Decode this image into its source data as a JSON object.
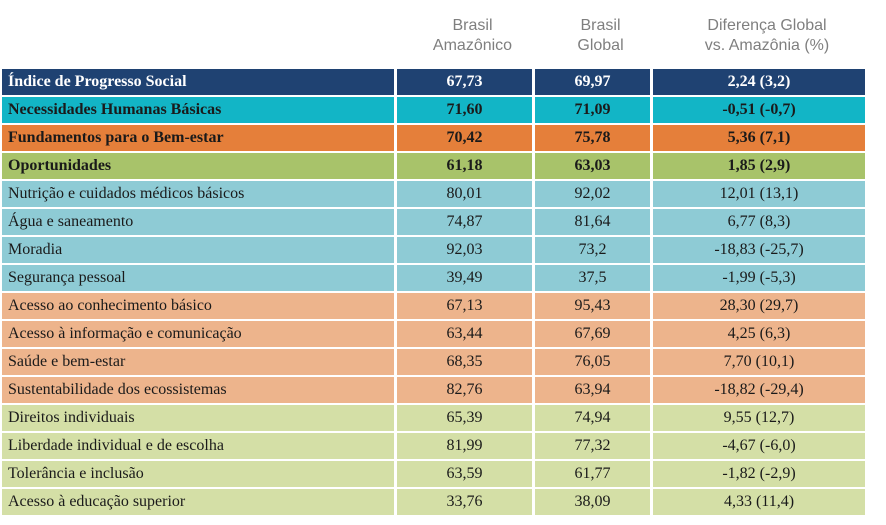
{
  "headers": {
    "col1": [
      "Brasil",
      "Amazônico"
    ],
    "col2": [
      "Brasil",
      "Global"
    ],
    "col3": [
      "Diferença Global",
      "vs. Amazônia (%)"
    ]
  },
  "colors": {
    "ips": "#1f4272",
    "nhb_main": "#12b5c6",
    "nhb_sub": "#8ecbd5",
    "fbe_main": "#e57f3a",
    "fbe_sub": "#edb48c",
    "op_main": "#a8c36a",
    "op_sub": "#d4dfa6"
  },
  "chart_data": {
    "type": "table",
    "columns": [
      "",
      "Brasil Amazônico",
      "Brasil Global",
      "Diferença Global vs. Amazônia (%)"
    ],
    "rows": [
      {
        "label": "Índice de Progresso Social",
        "amazonico": "67,73",
        "global": "69,97",
        "diff": "2,24 (3,2)",
        "group": "ips",
        "main": true
      },
      {
        "label": "Necessidades Humanas Básicas",
        "amazonico": "71,60",
        "global": "71,09",
        "diff": "-0,51 (-0,7)",
        "group": "nhb_main",
        "main": true
      },
      {
        "label": "Fundamentos para o Bem-estar",
        "amazonico": "70,42",
        "global": "75,78",
        "diff": "5,36 (7,1)",
        "group": "fbe_main",
        "main": true
      },
      {
        "label": "Oportunidades",
        "amazonico": "61,18",
        "global": "63,03",
        "diff": "1,85 (2,9)",
        "group": "op_main",
        "main": true
      },
      {
        "label": "Nutrição e cuidados médicos básicos",
        "amazonico": "80,01",
        "global": "92,02",
        "diff": "12,01 (13,1)",
        "group": "nhb_sub",
        "main": false
      },
      {
        "label": "Água e saneamento",
        "amazonico": "74,87",
        "global": "81,64",
        "diff": "6,77 (8,3)",
        "group": "nhb_sub",
        "main": false
      },
      {
        "label": "Moradia",
        "amazonico": "92,03",
        "global": "73,2",
        "diff": "-18,83 (-25,7)",
        "group": "nhb_sub",
        "main": false
      },
      {
        "label": "Segurança pessoal",
        "amazonico": "39,49",
        "global": "37,5",
        "diff": "-1,99 (-5,3)",
        "group": "nhb_sub",
        "main": false
      },
      {
        "label": "Acesso ao conhecimento básico",
        "amazonico": "67,13",
        "global": "95,43",
        "diff": "28,30 (29,7)",
        "group": "fbe_sub",
        "main": false
      },
      {
        "label": "Acesso à informação e comunicação",
        "amazonico": "63,44",
        "global": "67,69",
        "diff": "4,25 (6,3)",
        "group": "fbe_sub",
        "main": false
      },
      {
        "label": "Saúde e bem-estar",
        "amazonico": "68,35",
        "global": "76,05",
        "diff": "7,70 (10,1)",
        "group": "fbe_sub",
        "main": false
      },
      {
        "label": "Sustentabilidade dos ecossistemas",
        "amazonico": "82,76",
        "global": "63,94",
        "diff": "-18,82 (-29,4)",
        "group": "fbe_sub",
        "main": false
      },
      {
        "label": "Direitos individuais",
        "amazonico": "65,39",
        "global": "74,94",
        "diff": "9,55 (12,7)",
        "group": "op_sub",
        "main": false
      },
      {
        "label": "Liberdade individual e de escolha",
        "amazonico": "81,99",
        "global": "77,32",
        "diff": "-4,67 (-6,0)",
        "group": "op_sub",
        "main": false
      },
      {
        "label": "Tolerância e inclusão",
        "amazonico": "63,59",
        "global": "61,77",
        "diff": "-1,82 (-2,9)",
        "group": "op_sub",
        "main": false
      },
      {
        "label": "Acesso à educação superior",
        "amazonico": "33,76",
        "global": "38,09",
        "diff": "4,33 (11,4)",
        "group": "op_sub",
        "main": false
      }
    ]
  }
}
